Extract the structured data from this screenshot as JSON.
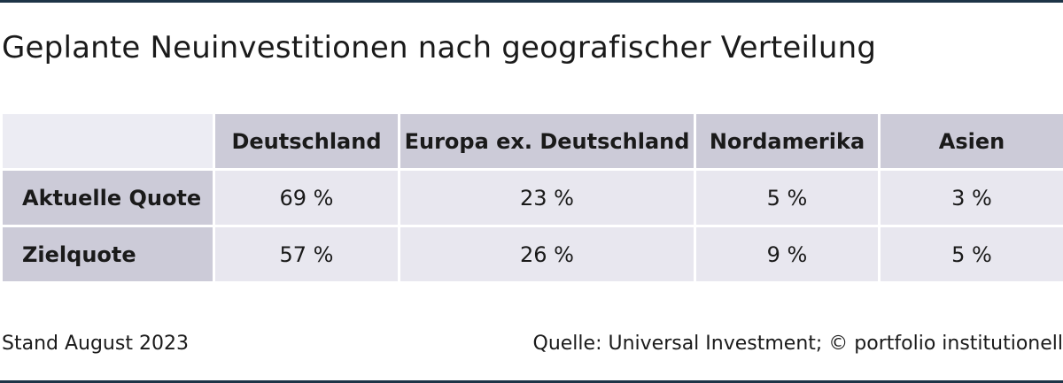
{
  "title": "Geplante Neuinvestitionen nach geografischer Verteilung",
  "chart_data": {
    "type": "table",
    "title": "Geplante Neuinvestitionen nach geografischer Verteilung",
    "columns": [
      "Deutschland",
      "Europa ex. Deutschland",
      "Nordamerika",
      "Asien"
    ],
    "rows": [
      {
        "label": "Aktuelle Quote",
        "values": [
          69,
          23,
          5,
          3
        ],
        "cells": [
          "69 %",
          "23 %",
          "5 %",
          "3 %"
        ]
      },
      {
        "label": "Zielquote",
        "values": [
          57,
          26,
          9,
          5
        ],
        "cells": [
          "57 %",
          "26 %",
          "9 %",
          "5 %"
        ]
      }
    ],
    "unit": "%"
  },
  "footer": {
    "date": "Stand August 2023",
    "source": "Quelle: Universal Investment; © portfolio institutionell"
  },
  "colors": {
    "rule": "#1d3447",
    "header_fill": "#cccbd8",
    "cell_fill": "#e8e7ef",
    "corner_fill": "#ececf3"
  }
}
